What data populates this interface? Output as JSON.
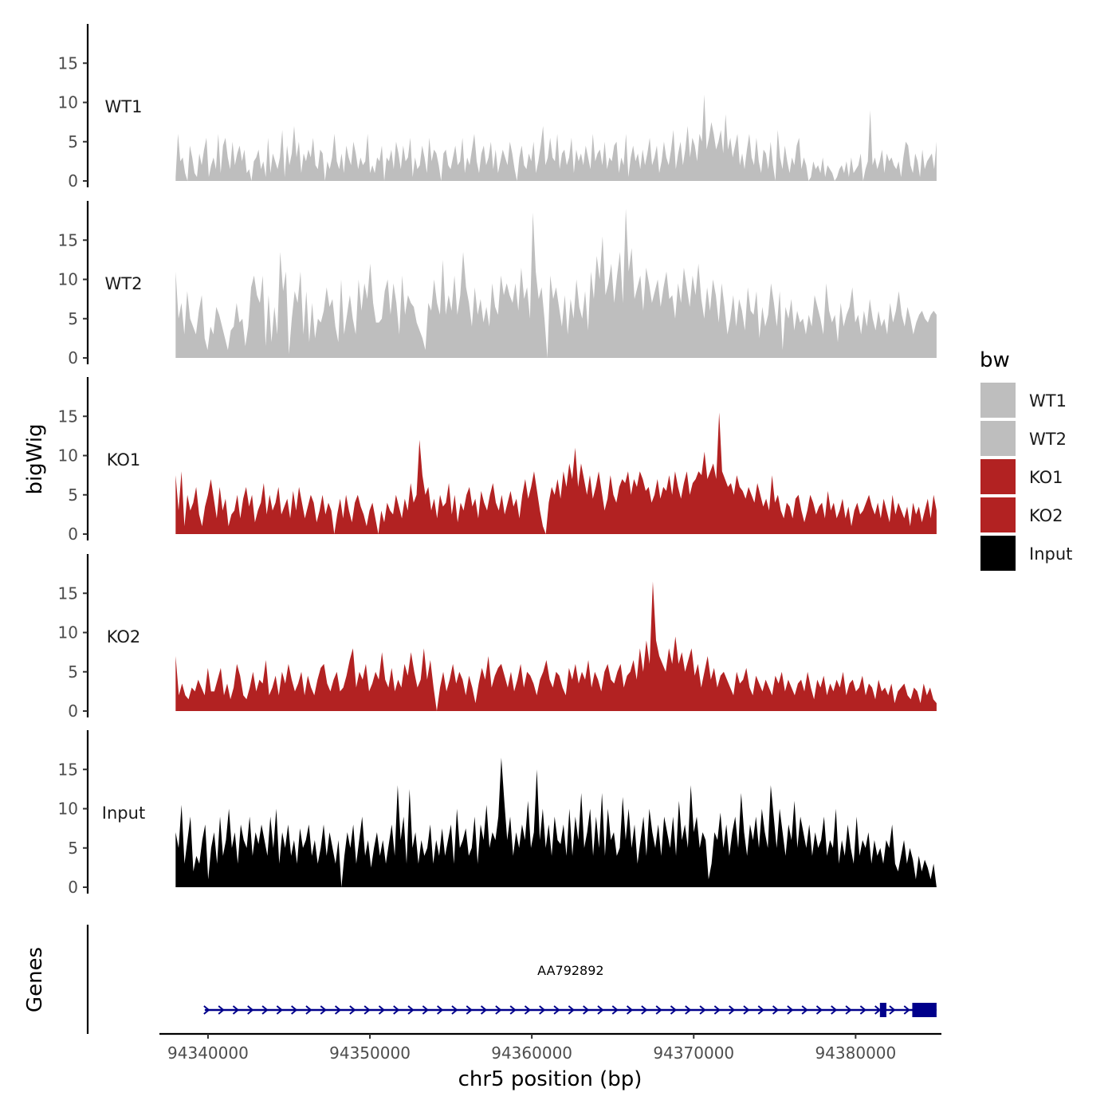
{
  "chart_data": {
    "type": "area",
    "title": "",
    "ylabel": "bigWig",
    "xlabel": "chr5 position (bp)",
    "xlim": [
      94337000,
      94385300
    ],
    "data_range": [
      94338000,
      94385000
    ],
    "ylim": [
      0,
      20
    ],
    "y_ticks": [
      0,
      5,
      10,
      15
    ],
    "x_ticks": [
      94340000,
      94350000,
      94360000,
      94370000,
      94380000
    ],
    "x_tick_labels": [
      "94340000",
      "94350000",
      "94360000",
      "94370000",
      "94380000"
    ],
    "grid": false,
    "legend": {
      "title": "bw",
      "position": "right",
      "entries": [
        "WT1",
        "WT2",
        "KO1",
        "KO2",
        "Input"
      ]
    },
    "series": [
      {
        "name": "WT1",
        "color": "#BEBEBE",
        "values": [
          0.5,
          6,
          2.5,
          3,
          1,
          0,
          4.5,
          3,
          1,
          0.5,
          3.5,
          2,
          4,
          5.5,
          0.5,
          2,
          3,
          1.5,
          6,
          1,
          4.5,
          5.5,
          3,
          1.5,
          5,
          2,
          3.5,
          4.5,
          2.5,
          4,
          1,
          1.5,
          0,
          2.5,
          3,
          4,
          1.5,
          2.5,
          0.5,
          5.5,
          1,
          3.5,
          2.5,
          1.5,
          3,
          6.5,
          0.5,
          4.5,
          2,
          3.5,
          7,
          3,
          5,
          1,
          3.5,
          2.5,
          4,
          3,
          5.5,
          2,
          1.5,
          4,
          3.5,
          0,
          2.5,
          1.5,
          3,
          6,
          2.5,
          1.5,
          3.5,
          1,
          4.5,
          3,
          2,
          5,
          3.5,
          1.5,
          3,
          2,
          2.5,
          6,
          1,
          2,
          1,
          3,
          2.5,
          4.5,
          0,
          3,
          2.5,
          4,
          1.5,
          5,
          3.5,
          1.5,
          4.5,
          2.5,
          3,
          5.5,
          0.5,
          3,
          1.5,
          2,
          4.5,
          3,
          1,
          5.5,
          2.5,
          4,
          3.5,
          2,
          0,
          3.5,
          4,
          2,
          1.5,
          3,
          4.5,
          2,
          2.5,
          5.5,
          1,
          3,
          2,
          4,
          6,
          2.5,
          1,
          3.5,
          4.5,
          2,
          3,
          5,
          1.5,
          4,
          1,
          2.5,
          4,
          3,
          2,
          5,
          3.5,
          1.5,
          0,
          3,
          4.5,
          2,
          1.5,
          3.5,
          2.5,
          5,
          1,
          2.5,
          4.5,
          7,
          2,
          3,
          5.5,
          3,
          2.5,
          6,
          1.5,
          3.5,
          4,
          2,
          3,
          5.5,
          1,
          4,
          2.5,
          3.5,
          2,
          4.5,
          3,
          1.5,
          6,
          2.5,
          3.5,
          4,
          2,
          5,
          1.5,
          3,
          2.5,
          4.5,
          5,
          1,
          3,
          2,
          6,
          0.5,
          3,
          4.5,
          2.5,
          3.5,
          1.5,
          4,
          2,
          3.5,
          5.5,
          2,
          3,
          4.5,
          1,
          2.5,
          5,
          3,
          2,
          4,
          6.5,
          1.5,
          3.5,
          5,
          2,
          4,
          7,
          3,
          5.5,
          4.5,
          2.5,
          6,
          5,
          11,
          4,
          5.5,
          7.5,
          6,
          4,
          5,
          6.5,
          3.5,
          8.5,
          4,
          5.5,
          3,
          4.5,
          6,
          2,
          3.5,
          1.5,
          4,
          6,
          3,
          2,
          5.5,
          2.5,
          1,
          4,
          3.5,
          1.5,
          5,
          2,
          0,
          6.5,
          3,
          1.5,
          4.5,
          2.5,
          1,
          3,
          2,
          4.5,
          5.5,
          1.5,
          3,
          2,
          0,
          0.5,
          2.5,
          1.5,
          2,
          1,
          3,
          0.5,
          2,
          1.5,
          1,
          0,
          0.5,
          1.5,
          2,
          1,
          2.5,
          0.5,
          3,
          1,
          1.5,
          2,
          3.5,
          0,
          1.5,
          2.5,
          9,
          2,
          3,
          1.5,
          2.5,
          4,
          1,
          3.5,
          2.5,
          3,
          2,
          1.5,
          2.5,
          0.5,
          3,
          5,
          4.5,
          2,
          1,
          3.5,
          2.5,
          0.5,
          4,
          1.5,
          2.5,
          3,
          3.5,
          1.5,
          5
        ]
      },
      {
        "name": "WT2",
        "color": "#BEBEBE",
        "values": [
          11,
          5,
          7,
          3,
          8.5,
          5,
          4,
          3,
          6,
          8,
          2.5,
          1,
          4,
          3,
          6.5,
          5.5,
          4,
          2.5,
          1,
          3.5,
          4,
          7,
          4.5,
          5,
          1.5,
          4,
          9,
          10.5,
          8,
          7,
          10.5,
          1.5,
          8,
          2,
          6.5,
          3,
          13.5,
          8.5,
          11,
          0.5,
          5,
          8.5,
          7,
          11,
          3,
          8.5,
          2,
          7,
          2.5,
          5,
          4.5,
          6,
          9,
          6.5,
          7.5,
          4,
          2,
          10,
          3,
          5.5,
          8,
          5,
          3,
          10,
          6,
          9.5,
          7.5,
          12,
          7,
          4.5,
          4.5,
          5,
          8.5,
          10,
          5.5,
          9.5,
          7,
          3,
          10.5,
          5.5,
          8,
          7,
          6.5,
          4.5,
          3.5,
          2.5,
          1,
          7,
          6,
          10,
          7,
          5.5,
          12.5,
          5.5,
          8,
          6,
          10.5,
          5.5,
          8,
          13.5,
          9,
          7,
          4,
          9,
          5.5,
          7.5,
          4.5,
          6.5,
          4,
          9.5,
          6.5,
          5.5,
          10.5,
          8,
          9.5,
          8,
          7,
          9.5,
          6,
          11.5,
          7.5,
          9,
          5,
          18.5,
          11,
          7.5,
          9,
          5,
          0,
          10.5,
          7.5,
          9,
          6.5,
          4,
          8,
          3,
          7.5,
          5,
          10,
          6.5,
          5,
          8.5,
          3.5,
          11,
          7.5,
          13,
          10,
          15.5,
          8,
          9.5,
          12,
          7,
          10.5,
          13.5,
          7,
          19,
          11,
          14,
          7.5,
          9,
          10.5,
          6,
          11.5,
          9.5,
          7,
          8.5,
          10,
          6.5,
          9,
          11,
          7.5,
          8,
          5,
          9.5,
          7,
          11.5,
          9,
          6.5,
          10.5,
          8,
          12,
          7.5,
          5,
          9,
          6,
          10,
          8,
          4.5,
          9.5,
          6.5,
          3,
          5,
          8,
          4,
          7.5,
          6,
          3.5,
          9,
          6,
          5.5,
          8.5,
          2.5,
          6.5,
          4,
          5.5,
          9.5,
          7,
          4,
          8.5,
          1,
          6.5,
          5,
          7.5,
          3.5,
          6,
          4.5,
          5,
          3,
          5.5,
          4,
          8,
          6.5,
          5,
          3,
          9.5,
          6,
          4.5,
          5.5,
          2,
          7,
          4,
          5.5,
          6.5,
          9,
          4.5,
          5.5,
          3,
          6,
          4,
          7.5,
          5,
          3.5,
          6,
          4,
          5,
          3,
          7,
          4.5,
          6,
          8.5,
          5.5,
          4,
          6.5,
          5,
          3,
          4.5,
          5.5,
          6,
          5,
          4.5,
          5.5,
          6,
          5.5
        ]
      },
      {
        "name": "KO1",
        "color": "#B22222",
        "values": [
          7.5,
          3,
          8,
          1,
          5,
          3,
          4,
          6,
          2.5,
          1,
          3.5,
          5,
          7,
          4.5,
          2,
          6,
          3,
          4.5,
          1,
          2.5,
          3,
          5,
          2,
          4.5,
          6,
          3.5,
          5,
          1.5,
          3,
          4,
          6.5,
          2.5,
          5,
          3,
          4,
          6,
          2.5,
          3.5,
          4.5,
          2,
          5.5,
          3,
          6,
          4,
          2,
          3.5,
          5,
          4,
          1.5,
          3,
          5,
          2.5,
          4,
          3,
          0,
          2.5,
          4.5,
          2,
          5,
          3,
          1.5,
          4,
          5,
          3.5,
          2.5,
          1,
          3,
          4,
          2,
          0,
          3,
          1.5,
          4,
          3,
          2.5,
          5,
          3.5,
          2,
          4.5,
          3,
          6.5,
          4,
          5,
          12,
          7.5,
          5,
          6,
          3,
          4.5,
          2,
          5,
          3.5,
          4,
          6.5,
          2.5,
          5,
          1.5,
          4,
          3,
          5,
          6,
          3.5,
          4.5,
          2,
          5.5,
          4,
          3,
          5,
          6.5,
          4,
          3,
          5,
          2.5,
          4,
          5.5,
          3.5,
          4.5,
          2,
          5,
          7,
          4.5,
          6,
          8,
          5.5,
          3,
          1,
          0,
          4,
          6,
          5,
          7,
          4.5,
          8,
          6,
          9,
          7,
          11,
          6,
          9,
          7,
          5,
          7.5,
          4.5,
          6,
          8,
          5.5,
          3,
          4.5,
          7.5,
          5,
          4,
          6,
          7,
          6.5,
          8,
          5,
          7,
          6,
          8,
          7,
          5.5,
          6,
          4,
          5,
          7,
          4.5,
          6,
          5.5,
          7.5,
          5,
          8,
          6,
          4.5,
          6.5,
          8,
          5,
          6.5,
          7,
          8,
          7.5,
          10.5,
          7,
          8,
          9,
          7,
          15.5,
          8,
          7,
          6,
          6.5,
          5,
          7.5,
          6,
          5.5,
          4.5,
          6,
          5,
          4,
          6.5,
          5,
          3.5,
          4.5,
          3,
          7.5,
          4,
          5,
          3,
          2,
          4,
          3.5,
          2,
          4.5,
          5,
          3,
          1.5,
          3,
          5,
          4,
          2.5,
          3.5,
          4,
          2,
          5.5,
          3,
          4,
          2,
          3,
          4.5,
          2,
          3.5,
          1,
          3,
          4,
          2.5,
          3,
          4,
          5,
          3.5,
          2.5,
          4,
          2,
          4.5,
          3,
          1.5,
          5,
          2.5,
          4,
          3,
          2,
          3.5,
          1,
          4,
          2.5,
          3.5,
          1.5,
          3,
          4.5,
          2,
          5,
          3
        ]
      },
      {
        "name": "KO2",
        "color": "#B22222",
        "values": [
          7,
          2,
          3.5,
          2,
          1.5,
          3,
          2.5,
          4,
          3,
          2,
          5.5,
          2.5,
          2.5,
          4,
          5.5,
          2,
          3.5,
          1.5,
          3,
          6,
          4.5,
          2,
          1.5,
          3,
          5,
          2.5,
          4,
          3.5,
          6.5,
          2,
          3,
          4.5,
          2,
          5,
          3.5,
          6,
          4,
          2.5,
          3.5,
          5,
          2,
          4.5,
          3,
          2,
          4,
          5.5,
          6,
          3.5,
          2.5,
          4,
          5,
          2.5,
          3,
          4.5,
          6.5,
          8,
          3,
          5,
          4,
          6,
          2.5,
          3.5,
          5,
          4,
          7.5,
          4,
          3,
          5.5,
          2.5,
          4,
          3,
          6,
          4.5,
          7.5,
          5,
          3,
          4,
          8,
          4,
          6.5,
          3,
          0,
          3,
          5,
          2.5,
          4,
          6,
          3.5,
          5,
          4,
          2,
          4.5,
          3,
          1,
          3.5,
          5.5,
          4,
          7,
          3,
          4.5,
          5.5,
          6,
          4.5,
          3,
          5,
          2.5,
          4,
          6,
          3,
          5,
          4.5,
          3.5,
          2,
          4,
          5,
          6.5,
          4,
          3,
          5,
          4.5,
          3,
          2,
          5.5,
          4,
          6,
          3.5,
          5,
          4,
          6.5,
          3,
          5,
          4,
          2.5,
          5,
          6,
          4,
          3.5,
          5,
          6,
          3,
          4.5,
          5,
          6.5,
          4,
          8,
          5,
          9,
          6,
          16.5,
          9,
          7,
          6,
          5,
          8,
          6,
          9.5,
          6,
          7.5,
          5,
          6.5,
          8,
          4.5,
          6,
          3,
          5,
          7,
          4,
          5.5,
          3,
          4.5,
          5,
          4,
          3,
          2,
          5,
          3.5,
          4,
          5.5,
          3,
          2,
          4.5,
          3.5,
          2.5,
          4,
          3,
          2,
          4.5,
          3.5,
          5,
          2.5,
          4,
          3,
          2,
          3.5,
          4,
          2.5,
          5,
          3,
          1.5,
          4,
          3,
          4.5,
          2,
          3.5,
          2.5,
          4,
          3,
          5,
          2,
          3.5,
          4,
          2.5,
          3,
          4.5,
          2,
          3.5,
          3,
          1.5,
          4,
          2.5,
          3,
          2,
          3.5,
          1,
          2.5,
          3,
          3.5,
          2,
          1.5,
          3,
          2.5,
          1,
          3.5,
          2,
          3,
          1.5,
          1
        ]
      },
      {
        "name": "Input",
        "color": "#000000",
        "values": [
          7,
          5,
          10.5,
          3,
          6,
          9,
          2,
          4,
          3,
          6,
          8,
          1,
          5,
          7,
          3,
          9,
          4,
          6,
          10,
          5,
          7,
          3,
          8,
          6,
          5,
          9,
          4,
          7,
          5.5,
          8,
          6,
          4,
          9,
          5,
          10,
          3,
          7,
          5,
          8,
          4,
          6,
          3,
          7.5,
          5,
          6,
          8,
          4,
          6,
          3,
          5,
          8,
          4,
          7,
          5,
          3,
          6,
          0,
          4,
          7,
          5,
          8,
          3,
          6,
          9,
          4,
          6,
          2.5,
          5,
          7,
          4,
          6,
          3,
          5.5,
          8,
          4,
          13,
          6,
          9,
          3,
          12.5,
          5,
          7,
          3,
          6,
          4,
          5,
          8,
          3,
          6,
          4,
          7.5,
          4,
          6,
          8,
          3,
          10,
          5,
          6,
          7.5,
          4,
          5,
          9,
          3,
          8,
          6,
          10.5,
          5,
          7,
          6,
          9,
          16.5,
          11,
          6,
          9,
          4,
          7,
          5,
          8,
          6,
          11,
          5,
          7,
          15,
          6,
          10,
          5,
          8,
          4,
          9,
          6,
          5.5,
          8,
          4,
          10,
          4,
          9,
          6,
          12,
          5,
          7,
          10,
          4,
          9,
          5,
          12,
          4,
          10,
          6,
          7,
          4,
          5,
          11.5,
          6,
          10,
          5,
          8,
          3,
          6,
          9,
          4,
          10,
          7,
          5,
          8,
          4,
          9,
          7,
          5,
          9,
          4,
          11,
          6,
          8,
          5,
          13,
          7,
          9,
          5,
          7,
          6,
          1,
          3,
          7,
          6,
          9.5,
          5,
          8,
          4,
          7,
          9,
          5,
          12,
          7,
          4,
          8,
          6,
          9,
          5,
          10,
          7,
          5,
          13,
          9,
          5,
          10,
          7,
          4,
          8,
          6,
          11,
          5,
          9,
          7,
          5,
          8,
          4,
          7,
          5,
          6,
          9,
          4,
          6,
          5,
          10,
          3,
          6,
          4,
          8,
          5,
          3,
          9,
          4,
          6,
          5,
          7,
          3,
          6,
          4,
          5,
          3,
          6,
          5,
          8,
          3,
          2,
          4,
          6,
          3,
          5,
          3.5,
          1,
          4,
          2,
          3.5,
          2.5,
          1,
          3,
          0
        ]
      }
    ],
    "gene_track": {
      "ylabel": "Genes",
      "gene_name": "AA792892",
      "start": 94339800,
      "end": 94385000,
      "strand": "+",
      "color": "#00008B",
      "exons": [
        [
          94381500,
          94381900
        ],
        [
          94383500,
          94385000
        ]
      ]
    }
  }
}
